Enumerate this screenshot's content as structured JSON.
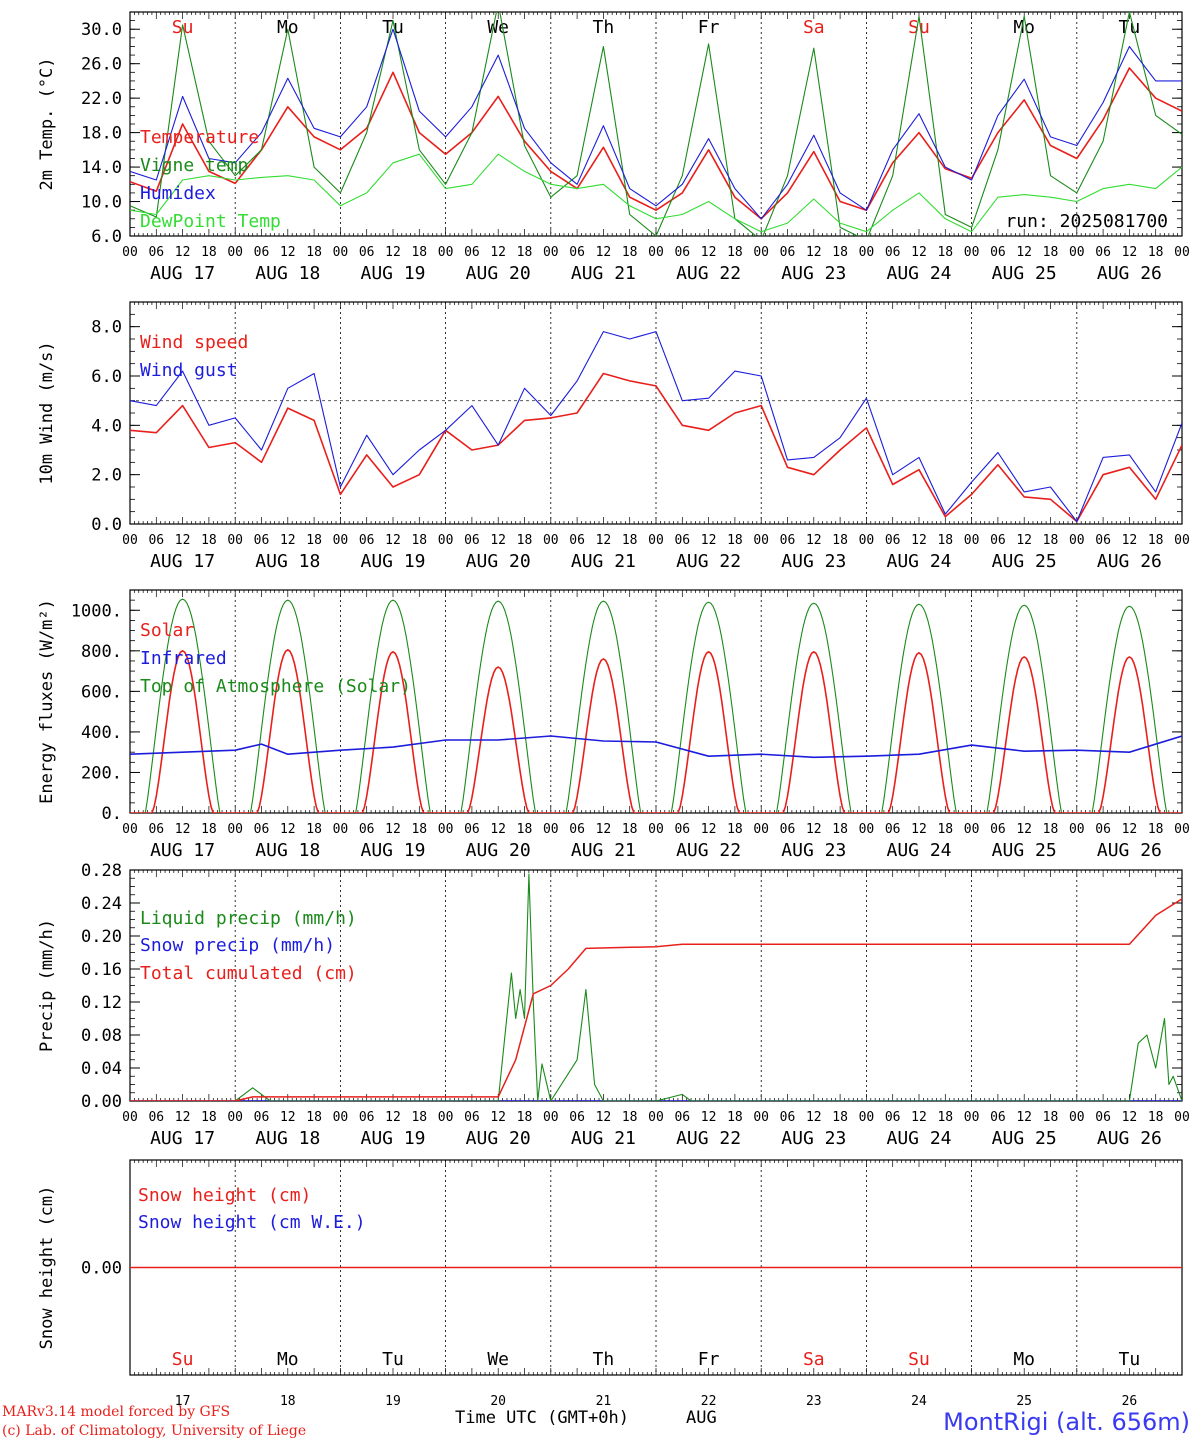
{
  "run_label": "run: 2025081700",
  "days": {
    "names": [
      "Su",
      "Mo",
      "Tu",
      "We",
      "Th",
      "Fr",
      "Sa",
      "Su",
      "Mo",
      "Tu"
    ],
    "dates": [
      "AUG 17",
      "AUG 18",
      "AUG 19",
      "AUG 20",
      "AUG 21",
      "AUG 22",
      "AUG 23",
      "AUG 24",
      "AUG 25",
      "AUG 26"
    ],
    "numbers": [
      "17",
      "18",
      "19",
      "20",
      "21",
      "22",
      "23",
      "24",
      "25",
      "26"
    ],
    "weekend_color": "#e8201c",
    "weekday_color": "#000000",
    "weekend_flags": [
      true,
      false,
      false,
      false,
      false,
      false,
      true,
      true,
      false,
      false
    ],
    "hour_ticks": [
      "00",
      "06",
      "12",
      "18"
    ]
  },
  "footer": {
    "line1": "MARv3.14 model forced by GFS",
    "line2": "(c) Lab. of Climatology, University of Liege",
    "xlabel": "Time UTC (GMT+0h)",
    "month": "AUG",
    "station": "MontRigi (alt. 656m)"
  },
  "colors": {
    "red": "#e8201c",
    "blue": "#1c1cdc",
    "green": "#1a8a1a",
    "lightgreen": "#33dd33"
  },
  "chart_data": [
    {
      "type": "line",
      "ylabel": "2m Temp. (°C)",
      "ylim": [
        6.0,
        32.0
      ],
      "yticks": [
        "6.0",
        "10.0",
        "14.0",
        "18.0",
        "22.0",
        "26.0",
        "30.0"
      ],
      "x": [
        "2025-08-17 00",
        "2025-08-17 06",
        "2025-08-17 12",
        "2025-08-17 18",
        "2025-08-18 00",
        "2025-08-18 06",
        "2025-08-18 12",
        "2025-08-18 18",
        "2025-08-19 00",
        "2025-08-19 06",
        "2025-08-19 12",
        "2025-08-19 18",
        "2025-08-20 00",
        "2025-08-20 06",
        "2025-08-20 12",
        "2025-08-20 18",
        "2025-08-21 00",
        "2025-08-21 06",
        "2025-08-21 12",
        "2025-08-21 18",
        "2025-08-22 00",
        "2025-08-22 06",
        "2025-08-22 12",
        "2025-08-22 18",
        "2025-08-23 00",
        "2025-08-23 06",
        "2025-08-23 12",
        "2025-08-23 18",
        "2025-08-24 00",
        "2025-08-24 06",
        "2025-08-24 12",
        "2025-08-24 18",
        "2025-08-25 00",
        "2025-08-25 06",
        "2025-08-25 12",
        "2025-08-25 18",
        "2025-08-26 00",
        "2025-08-26 06",
        "2025-08-26 12",
        "2025-08-26 18",
        "2025-08-27 00"
      ],
      "series": [
        {
          "name": "Temperature",
          "color": "red",
          "values": [
            12.3,
            11.2,
            19.0,
            13.5,
            12.1,
            16.0,
            21.0,
            17.5,
            16.0,
            18.5,
            25.0,
            18.0,
            15.5,
            18.0,
            22.2,
            17.0,
            13.5,
            11.5,
            16.3,
            10.5,
            9.0,
            11.0,
            16.0,
            10.5,
            8.0,
            11.0,
            15.8,
            10.0,
            9.0,
            14.5,
            18.0,
            13.8,
            12.7,
            18.0,
            21.8,
            16.5,
            15.0,
            19.5,
            25.5,
            22.0,
            20.5
          ]
        },
        {
          "name": "Vigne temp",
          "color": "green",
          "values": [
            9.5,
            8.2,
            30.5,
            17.0,
            13.0,
            16.0,
            30.0,
            14.0,
            11.0,
            18.0,
            31.0,
            16.0,
            12.0,
            18.0,
            33.0,
            16.5,
            10.5,
            13.0,
            28.0,
            8.5,
            6.0,
            13.0,
            28.3,
            8.0,
            5.5,
            13.0,
            27.8,
            7.0,
            5.5,
            13.0,
            31.5,
            8.5,
            7.0,
            16.0,
            31.5,
            13.0,
            11.0,
            17.0,
            32.0,
            20.0,
            17.8
          ]
        },
        {
          "name": "Humidex",
          "color": "blue",
          "values": [
            13.5,
            12.5,
            22.2,
            15.0,
            14.5,
            18.0,
            24.3,
            18.5,
            17.5,
            21.0,
            30.0,
            20.5,
            17.5,
            21.0,
            27.0,
            18.5,
            14.5,
            12.0,
            18.8,
            11.5,
            9.5,
            12.0,
            17.3,
            11.5,
            8.0,
            12.0,
            17.7,
            11.0,
            9.0,
            16.0,
            20.2,
            14.0,
            12.5,
            20.0,
            24.2,
            17.5,
            16.5,
            21.5,
            28.0,
            24.0,
            24.0
          ]
        },
        {
          "name": "DewPoint Temp",
          "color": "lightgreen",
          "values": [
            9.0,
            8.5,
            12.5,
            13.0,
            12.5,
            12.8,
            13.0,
            12.5,
            9.5,
            11.0,
            14.5,
            15.5,
            11.5,
            12.0,
            15.5,
            13.5,
            12.0,
            11.5,
            12.0,
            9.5,
            8.0,
            8.5,
            10.0,
            8.0,
            6.5,
            7.5,
            10.3,
            7.5,
            6.5,
            9.0,
            11.0,
            8.0,
            6.5,
            10.5,
            10.8,
            10.5,
            10.0,
            11.5,
            12.0,
            11.5,
            14.0
          ]
        }
      ]
    },
    {
      "type": "line",
      "ylabel": "10m Wind (m/s)",
      "ylim": [
        0.0,
        9.0
      ],
      "yticks": [
        "0.0",
        "2.0",
        "4.0",
        "6.0",
        "8.0"
      ],
      "ref_line": 5.0,
      "x": [
        "2025-08-17 00",
        "2025-08-17 06",
        "2025-08-17 12",
        "2025-08-17 18",
        "2025-08-18 00",
        "2025-08-18 06",
        "2025-08-18 12",
        "2025-08-18 18",
        "2025-08-19 00",
        "2025-08-19 06",
        "2025-08-19 12",
        "2025-08-19 18",
        "2025-08-20 00",
        "2025-08-20 06",
        "2025-08-20 12",
        "2025-08-20 18",
        "2025-08-21 00",
        "2025-08-21 06",
        "2025-08-21 12",
        "2025-08-21 18",
        "2025-08-22 00",
        "2025-08-22 06",
        "2025-08-22 12",
        "2025-08-22 18",
        "2025-08-23 00",
        "2025-08-23 06",
        "2025-08-23 12",
        "2025-08-23 18",
        "2025-08-24 00",
        "2025-08-24 06",
        "2025-08-24 12",
        "2025-08-24 18",
        "2025-08-25 00",
        "2025-08-25 06",
        "2025-08-25 12",
        "2025-08-25 18",
        "2025-08-26 00",
        "2025-08-26 06",
        "2025-08-26 12",
        "2025-08-26 18",
        "2025-08-27 00"
      ],
      "series": [
        {
          "name": "Wind speed",
          "color": "red",
          "values": [
            3.8,
            3.7,
            4.8,
            3.1,
            3.3,
            2.5,
            4.7,
            4.2,
            1.2,
            2.8,
            1.5,
            2.0,
            3.8,
            3.0,
            3.2,
            4.2,
            4.3,
            4.5,
            6.1,
            5.8,
            5.6,
            4.0,
            3.8,
            4.5,
            4.8,
            2.3,
            2.0,
            3.0,
            3.9,
            1.6,
            2.2,
            0.3,
            1.2,
            2.4,
            1.1,
            1.0,
            0.1,
            2.0,
            2.3,
            1.0,
            3.2
          ]
        },
        {
          "name": "Wind gust",
          "color": "blue",
          "values": [
            5.0,
            4.8,
            6.2,
            4.0,
            4.3,
            3.0,
            5.5,
            6.1,
            1.5,
            3.6,
            2.0,
            3.0,
            3.8,
            4.8,
            3.2,
            5.5,
            4.4,
            5.8,
            7.8,
            7.5,
            7.8,
            5.0,
            5.1,
            6.2,
            6.0,
            2.6,
            2.7,
            3.5,
            5.1,
            2.0,
            2.7,
            0.4,
            1.7,
            2.9,
            1.3,
            1.5,
            0.1,
            2.7,
            2.8,
            1.3,
            4.1
          ]
        }
      ]
    },
    {
      "type": "line",
      "ylabel": "Energy fluxes (W/m²)",
      "ylim": [
        0,
        1100
      ],
      "yticks": [
        "0.",
        "200.",
        "400.",
        "600.",
        "800.",
        "1000."
      ],
      "series": [
        {
          "name": "Solar",
          "color": "red",
          "daily_peaks": [
            800,
            805,
            795,
            720,
            760,
            795,
            795,
            790,
            770,
            770
          ]
        },
        {
          "name": "Infrared",
          "color": "blue",
          "x": [
            "2025-08-17 00",
            "2025-08-17 12",
            "2025-08-18 00",
            "2025-08-18 06",
            "2025-08-18 12",
            "2025-08-19 00",
            "2025-08-19 12",
            "2025-08-20 00",
            "2025-08-20 12",
            "2025-08-21 00",
            "2025-08-21 12",
            "2025-08-22 00",
            "2025-08-22 12",
            "2025-08-23 00",
            "2025-08-23 12",
            "2025-08-24 00",
            "2025-08-24 12",
            "2025-08-25 00",
            "2025-08-25 12",
            "2025-08-26 00",
            "2025-08-26 12",
            "2025-08-27 00"
          ],
          "values": [
            290,
            300,
            310,
            340,
            290,
            310,
            325,
            360,
            360,
            380,
            355,
            350,
            280,
            290,
            275,
            280,
            290,
            335,
            305,
            310,
            300,
            380
          ]
        },
        {
          "name": "Top of Atmosphere (Solar)",
          "color": "green",
          "daily_peaks": [
            1055,
            1050,
            1050,
            1045,
            1045,
            1040,
            1035,
            1030,
            1025,
            1020
          ]
        }
      ]
    },
    {
      "type": "line",
      "ylabel": "Precip (mm/h)",
      "ylim": [
        0.0,
        0.28
      ],
      "yticks": [
        "0.00",
        "0.04",
        "0.08",
        "0.12",
        "0.16",
        "0.20",
        "0.24",
        "0.28"
      ],
      "series": [
        {
          "name": "Liquid precip (mm/h)",
          "color": "green",
          "x": [
            "2025-08-17 00",
            "2025-08-18 00",
            "2025-08-18 04",
            "2025-08-18 08",
            "2025-08-20 12",
            "2025-08-20 15",
            "2025-08-20 16",
            "2025-08-20 17",
            "2025-08-20 18",
            "2025-08-20 19",
            "2025-08-20 20",
            "2025-08-20 21",
            "2025-08-20 22",
            "2025-08-21 00",
            "2025-08-21 06",
            "2025-08-21 08",
            "2025-08-21 10",
            "2025-08-21 12",
            "2025-08-22 00",
            "2025-08-22 06",
            "2025-08-22 08",
            "2025-08-26 12",
            "2025-08-26 14",
            "2025-08-26 16",
            "2025-08-26 18",
            "2025-08-26 20",
            "2025-08-26 21",
            "2025-08-26 22",
            "2025-08-27 00"
          ],
          "values": [
            0.0,
            0.0,
            0.016,
            0.0,
            0.0,
            0.155,
            0.1,
            0.135,
            0.1,
            0.275,
            0.12,
            0.0,
            0.045,
            0.0,
            0.05,
            0.135,
            0.02,
            0.0,
            0.0,
            0.008,
            0.0,
            0.0,
            0.07,
            0.08,
            0.04,
            0.1,
            0.02,
            0.03,
            0.0
          ]
        },
        {
          "name": "Snow precip (mm/h)",
          "color": "blue",
          "values": [
            0.0
          ]
        },
        {
          "name": "Total cumulated (cm)",
          "color": "red",
          "x": [
            "2025-08-17 00",
            "2025-08-18 00",
            "2025-08-18 04",
            "2025-08-20 12",
            "2025-08-20 16",
            "2025-08-20 20",
            "2025-08-21 00",
            "2025-08-21 04",
            "2025-08-21 08",
            "2025-08-22 00",
            "2025-08-22 06",
            "2025-08-26 12",
            "2025-08-26 18",
            "2025-08-27 00"
          ],
          "values": [
            0.0,
            0.0,
            0.005,
            0.005,
            0.05,
            0.13,
            0.14,
            0.16,
            0.185,
            0.187,
            0.19,
            0.19,
            0.225,
            0.245
          ]
        }
      ]
    },
    {
      "type": "line",
      "ylabel": "Snow height (cm)",
      "ylim": [
        -0.01,
        0.01
      ],
      "yticks": [
        "0.00"
      ],
      "series": [
        {
          "name": "Snow height (cm)",
          "color": "red",
          "values": [
            0.0
          ]
        },
        {
          "name": "Snow height (cm W.E.)",
          "color": "blue",
          "values": [
            0.0
          ]
        }
      ]
    }
  ]
}
